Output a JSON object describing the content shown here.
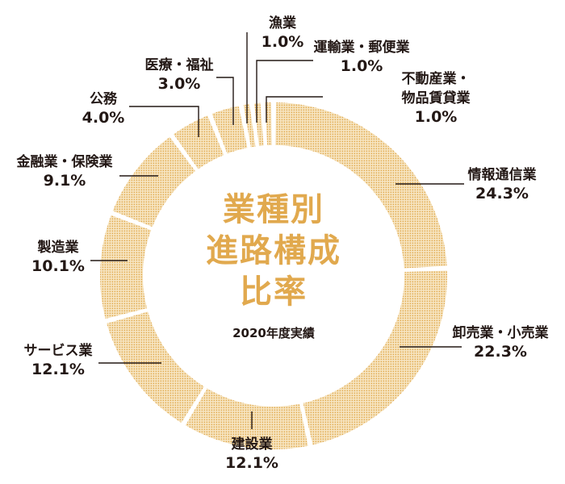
{
  "chart_data": {
    "type": "pie",
    "style": "donut",
    "title_lines": [
      "業種別",
      "進路構成",
      "比率"
    ],
    "subtitle": "2020年度実績",
    "unit": "%",
    "slices": [
      {
        "name": "情報通信業",
        "value": 24.3,
        "label": "24.3%"
      },
      {
        "name": "卸売業・小売業",
        "value": 22.3,
        "label": "22.3%"
      },
      {
        "name": "建設業",
        "value": 12.1,
        "label": "12.1%"
      },
      {
        "name": "サービス業",
        "value": 12.1,
        "label": "12.1%"
      },
      {
        "name": "製造業",
        "value": 10.1,
        "label": "10.1%"
      },
      {
        "name": "金融業・保険業",
        "value": 9.1,
        "label": "9.1%"
      },
      {
        "name": "公務",
        "value": 4.0,
        "label": "4.0%"
      },
      {
        "name": "医療・福祉",
        "value": 3.0,
        "label": "3.0%"
      },
      {
        "name": "漁業",
        "value": 1.0,
        "label": "1.0%"
      },
      {
        "name": "運輸業・郵便業",
        "value": 1.0,
        "label": "1.0%"
      },
      {
        "name": "不動産業・物品賃貸業",
        "value": 1.0,
        "label": "1.0%"
      }
    ],
    "slice_order": "clockwise from top",
    "legend": "none",
    "colors": {
      "ring": "#e1a94e",
      "ring_background": "#f7e6c4",
      "title": "#e1a94e",
      "text": "#231815",
      "leader": "#231815"
    }
  }
}
